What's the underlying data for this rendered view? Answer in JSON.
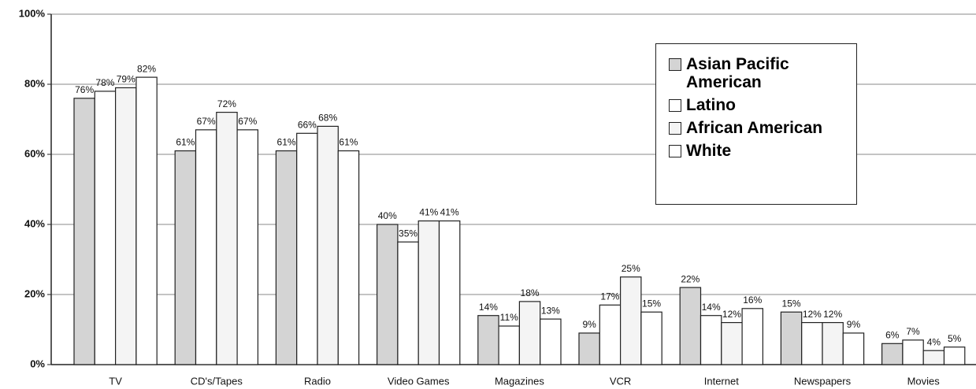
{
  "chart_data": {
    "type": "bar",
    "categories": [
      "TV",
      "CD's/Tapes",
      "Radio",
      "Video Games",
      "Magazines",
      "VCR",
      "Internet",
      "Newspapers",
      "Movies"
    ],
    "series": [
      {
        "name": "Asian Pacific American",
        "color": "#d4d4d4",
        "values": [
          76,
          61,
          61,
          40,
          14,
          9,
          22,
          15,
          6
        ],
        "value_labels": [
          "76%",
          "61%",
          "61%",
          "40%",
          "14%",
          "9%",
          "22%",
          "15%",
          "6%"
        ]
      },
      {
        "name": "Latino",
        "color": "#ffffff",
        "values": [
          78,
          67,
          66,
          35,
          11,
          17,
          14,
          12,
          7
        ],
        "value_labels": [
          "78%",
          "67%",
          "66%",
          "35%",
          "11%",
          "17%",
          "14%",
          "12%",
          "7%"
        ]
      },
      {
        "name": "African American",
        "color": "#f4f4f4",
        "values": [
          79,
          72,
          68,
          41,
          18,
          25,
          12,
          12,
          4
        ],
        "value_labels": [
          "79%",
          "72%",
          "68%",
          "41%",
          "18%",
          "25%",
          "12%",
          "12%",
          "4%"
        ]
      },
      {
        "name": "White",
        "color": "#ffffff",
        "values": [
          82,
          67,
          61,
          41,
          13,
          15,
          16,
          9,
          5
        ],
        "value_labels": [
          "82%",
          "67%",
          "61%",
          "41%",
          "13%",
          "15%",
          "16%",
          "9%",
          "5%"
        ]
      }
    ],
    "ylim": [
      0,
      100
    ],
    "yticks": [
      {
        "value": 0,
        "label": "0%"
      },
      {
        "value": 20,
        "label": "20%"
      },
      {
        "value": 40,
        "label": "40%"
      },
      {
        "value": 60,
        "label": "60%"
      },
      {
        "value": 80,
        "label": "80%"
      },
      {
        "value": 100,
        "label": "100%"
      }
    ],
    "grid": true
  }
}
